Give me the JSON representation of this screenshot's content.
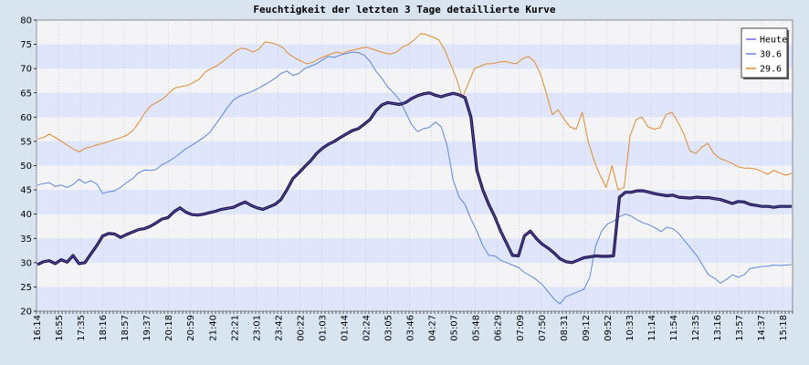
{
  "chart_data": {
    "type": "line",
    "title": "Feuchtigkeit der letzten 3 Tage   detaillierte Kurve",
    "xlabel": "",
    "ylabel": "",
    "ylim": [
      20,
      80
    ],
    "y_ticks": [
      20,
      25,
      30,
      35,
      40,
      45,
      50,
      55,
      60,
      65,
      70,
      75,
      80
    ],
    "x_ticks": [
      "16:14",
      "16:55",
      "17:35",
      "18:16",
      "18:57",
      "19:37",
      "20:18",
      "20:59",
      "21:40",
      "22:21",
      "23:01",
      "23:42",
      "00:22",
      "01:03",
      "01:44",
      "02:24",
      "03:05",
      "03:46",
      "04:27",
      "05:07",
      "05:48",
      "06:29",
      "07:09",
      "07:50",
      "08:31",
      "09:12",
      "09:52",
      "10:33",
      "11:14",
      "11:54",
      "12:35",
      "13:16",
      "13:57",
      "14:37",
      "15:18"
    ],
    "grid": true,
    "legend_position": "top-right",
    "series": [
      {
        "name": "Heute",
        "color": "#1a1040",
        "values": [
          29.6,
          30.2,
          30.4,
          29.8,
          30.6,
          30.1,
          31.5,
          29.8,
          30.0,
          31.8,
          33.5,
          35.5,
          36.0,
          35.9,
          35.2,
          35.8,
          36.3,
          36.8,
          37.0,
          37.5,
          38.2,
          39.0,
          39.3,
          40.5,
          41.3,
          40.4,
          39.9,
          39.8,
          40.0,
          40.3,
          40.6,
          41.0,
          41.2,
          41.4,
          42.0,
          42.5,
          41.8,
          41.3,
          41.0,
          41.5,
          42.0,
          43.0,
          45.0,
          47.3,
          48.5,
          49.8,
          51.0,
          52.5,
          53.6,
          54.4,
          55.0,
          55.8,
          56.5,
          57.2,
          57.6,
          58.5,
          59.5,
          61.3,
          62.5,
          63.0,
          62.8,
          62.6,
          63.0,
          63.8,
          64.4,
          64.8,
          65.0,
          64.5,
          64.2,
          64.6,
          64.9,
          64.6,
          64.0,
          60.0,
          49.0,
          45.0,
          42.0,
          39.5,
          36.5,
          34.0,
          31.5,
          31.4,
          35.5,
          36.5,
          35.0,
          33.8,
          33.0,
          32.0,
          30.8,
          30.2,
          30.0,
          30.5,
          31.0,
          31.2,
          31.4,
          31.3,
          31.3,
          31.4,
          43.5,
          44.5,
          44.5,
          44.8,
          44.8,
          44.5,
          44.2,
          44.0,
          43.8,
          43.9,
          43.5,
          43.4,
          43.3,
          43.5,
          43.4,
          43.4,
          43.2,
          43.0,
          42.6,
          42.2,
          42.6,
          42.5,
          42.0,
          41.8,
          41.6,
          41.6,
          41.4,
          41.6,
          41.6,
          41.6
        ]
      },
      {
        "name": "30.6",
        "color": "#5a86dd",
        "values": [
          46.0,
          46.3,
          46.5,
          45.7,
          46.0,
          45.5,
          46.1,
          47.2,
          46.4,
          46.9,
          46.2,
          44.2,
          44.6,
          44.8,
          45.5,
          46.5,
          47.3,
          48.5,
          49.1,
          49.0,
          49.2,
          50.2,
          50.8,
          51.6,
          52.5,
          53.5,
          54.2,
          55.0,
          55.8,
          56.8,
          58.5,
          60.2,
          62.0,
          63.5,
          64.3,
          64.8,
          65.2,
          65.8,
          66.5,
          67.2,
          68.0,
          69.0,
          69.5,
          68.6,
          69.0,
          70.0,
          70.5,
          71.0,
          71.8,
          72.5,
          72.3,
          72.8,
          73.1,
          73.4,
          73.3,
          72.8,
          71.5,
          69.5,
          68.0,
          66.2,
          65.0,
          63.5,
          61.0,
          58.5,
          57.0,
          57.6,
          57.9,
          59.0,
          58.0,
          54.0,
          47.0,
          43.5,
          42.0,
          39.0,
          36.5,
          33.5,
          31.5,
          31.4,
          30.5,
          30.0,
          29.5,
          29.0,
          28.0,
          27.3,
          26.5,
          25.5,
          24.0,
          22.5,
          21.5,
          23.0,
          23.5,
          24.0,
          24.5,
          27.0,
          33.5,
          36.5,
          38.0,
          38.5,
          39.5,
          40.0,
          39.6,
          38.8,
          38.2,
          37.8,
          37.2,
          36.4,
          37.3,
          37.0,
          36.0,
          34.5,
          33.0,
          31.5,
          29.5,
          27.5,
          26.8,
          25.8,
          26.5,
          27.5,
          27.0,
          27.5,
          28.8,
          29.0,
          29.2,
          29.3,
          29.5,
          29.4,
          29.5,
          29.6
        ]
      },
      {
        "name": "29.6",
        "color": "#e08a2e",
        "values": [
          55.5,
          55.8,
          56.5,
          55.8,
          55.0,
          54.2,
          53.4,
          52.8,
          53.6,
          53.9,
          54.3,
          54.6,
          55.0,
          55.4,
          55.8,
          56.3,
          57.3,
          59.0,
          61.0,
          62.4,
          63.1,
          63.8,
          65.0,
          66.0,
          66.3,
          66.5,
          67.1,
          67.8,
          69.3,
          70.0,
          70.6,
          71.5,
          72.5,
          73.5,
          74.2,
          74.0,
          73.4,
          74.0,
          75.5,
          75.3,
          75.0,
          74.3,
          73.0,
          72.2,
          71.6,
          71.0,
          71.3,
          72.0,
          72.5,
          73.0,
          73.4,
          73.1,
          73.6,
          73.9,
          74.2,
          74.4,
          74.0,
          73.6,
          73.2,
          73.0,
          73.4,
          74.5,
          75.0,
          76.0,
          77.2,
          77.0,
          76.5,
          76.0,
          74.0,
          71.0,
          68.0,
          64.0,
          67.0,
          70.0,
          70.5,
          71.0,
          71.0,
          71.3,
          71.5,
          71.2,
          71.0,
          72.0,
          72.5,
          71.5,
          69.0,
          65.0,
          60.5,
          61.5,
          59.5,
          58.0,
          57.5,
          61.0,
          55.0,
          51.0,
          48.0,
          45.5,
          50.0,
          45.0,
          45.5,
          56.0,
          59.5,
          60.0,
          58.0,
          57.5,
          57.8,
          60.5,
          61.0,
          59.0,
          56.5,
          53.0,
          52.5,
          53.8,
          54.6,
          52.5,
          51.5,
          51.0,
          50.5,
          49.8,
          49.5,
          49.5,
          49.3,
          48.8,
          48.2,
          49.0,
          48.5,
          48.0,
          48.4
        ]
      }
    ]
  }
}
